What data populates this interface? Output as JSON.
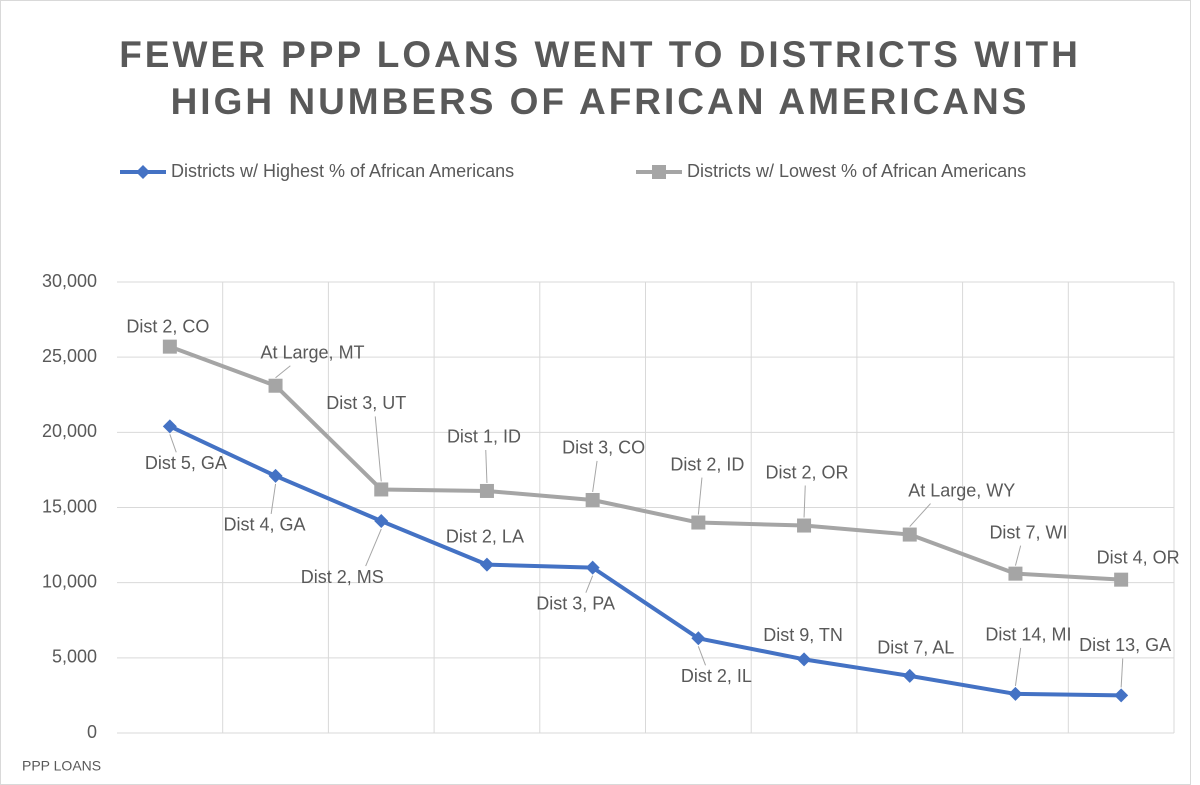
{
  "chart_data": {
    "type": "line",
    "title": [
      "FEWER PPP LOANS WENT TO DISTRICTS WITH",
      "HIGH NUMBERS OF AFRICAN AMERICANS"
    ],
    "y_label": "PPP LOANS",
    "categories": [
      null,
      null,
      null,
      null,
      null,
      null,
      null,
      null,
      null,
      null
    ],
    "series": [
      {
        "name": "Districts w/ Highest % of African Americans",
        "color": "#4472c4",
        "marker": "diamond",
        "values": [
          20400,
          17100,
          14100,
          11200,
          11000,
          6300,
          4900,
          3800,
          2600,
          2500
        ],
        "point_labels": [
          "Dist 5, GA",
          "Dist 4, GA",
          "Dist 2, MS",
          "Dist 2, LA",
          "Dist 3, PA",
          "Dist 2, IL",
          "Dist 9, TN",
          "Dist 7, AL",
          "Dist 14, MI",
          "Dist 13, GA"
        ]
      },
      {
        "name": "Districts w/ Lowest % of African Americans",
        "color": "#a5a5a5",
        "marker": "square",
        "values": [
          25700,
          23100,
          16200,
          16100,
          15500,
          14000,
          13800,
          13200,
          10600,
          10200
        ],
        "point_labels": [
          "Dist 2, CO",
          "At Large, MT",
          "Dist 3, UT",
          "Dist 1, ID",
          "Dist 3, CO",
          "Dist 2, ID",
          "Dist 2, OR",
          "At Large, WY",
          "Dist 7, WI",
          "Dist 4, OR"
        ]
      }
    ],
    "ylim": [
      0,
      30000
    ],
    "yticks": [
      0,
      {
        "value": 5000,
        "label": "5,000"
      },
      {
        "value": 10000,
        "label": "10,000"
      },
      {
        "value": 15000,
        "label": "15,000"
      },
      {
        "value": 20000,
        "label": "20,000"
      },
      {
        "value": 25000,
        "label": "25,000"
      },
      {
        "value": 30000,
        "label": "30,000"
      }
    ],
    "grid": true,
    "legend": "top"
  }
}
